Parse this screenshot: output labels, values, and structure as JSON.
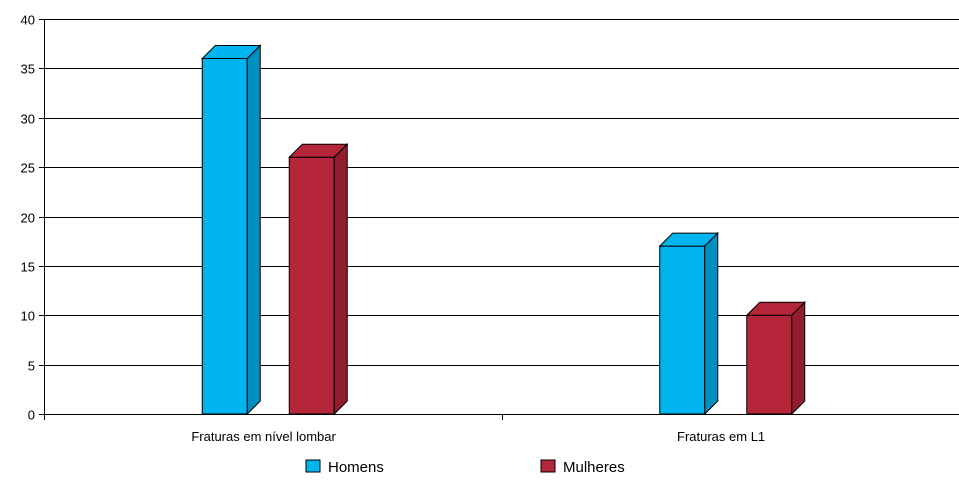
{
  "chart_data": {
    "type": "bar",
    "categories": [
      "Fraturas em nível lombar",
      "Fraturas em L1"
    ],
    "series": [
      {
        "name": "Homens",
        "values": [
          36,
          17
        ],
        "color": "#00b4ef"
      },
      {
        "name": "Mulheres",
        "values": [
          26,
          10
        ],
        "color": "#b5263a"
      }
    ],
    "ylim": [
      0,
      40
    ],
    "yticks": [
      0,
      5,
      10,
      15,
      20,
      25,
      30,
      35,
      40
    ],
    "grid": true,
    "legend_position": "bottom",
    "style": "3d-bars"
  }
}
